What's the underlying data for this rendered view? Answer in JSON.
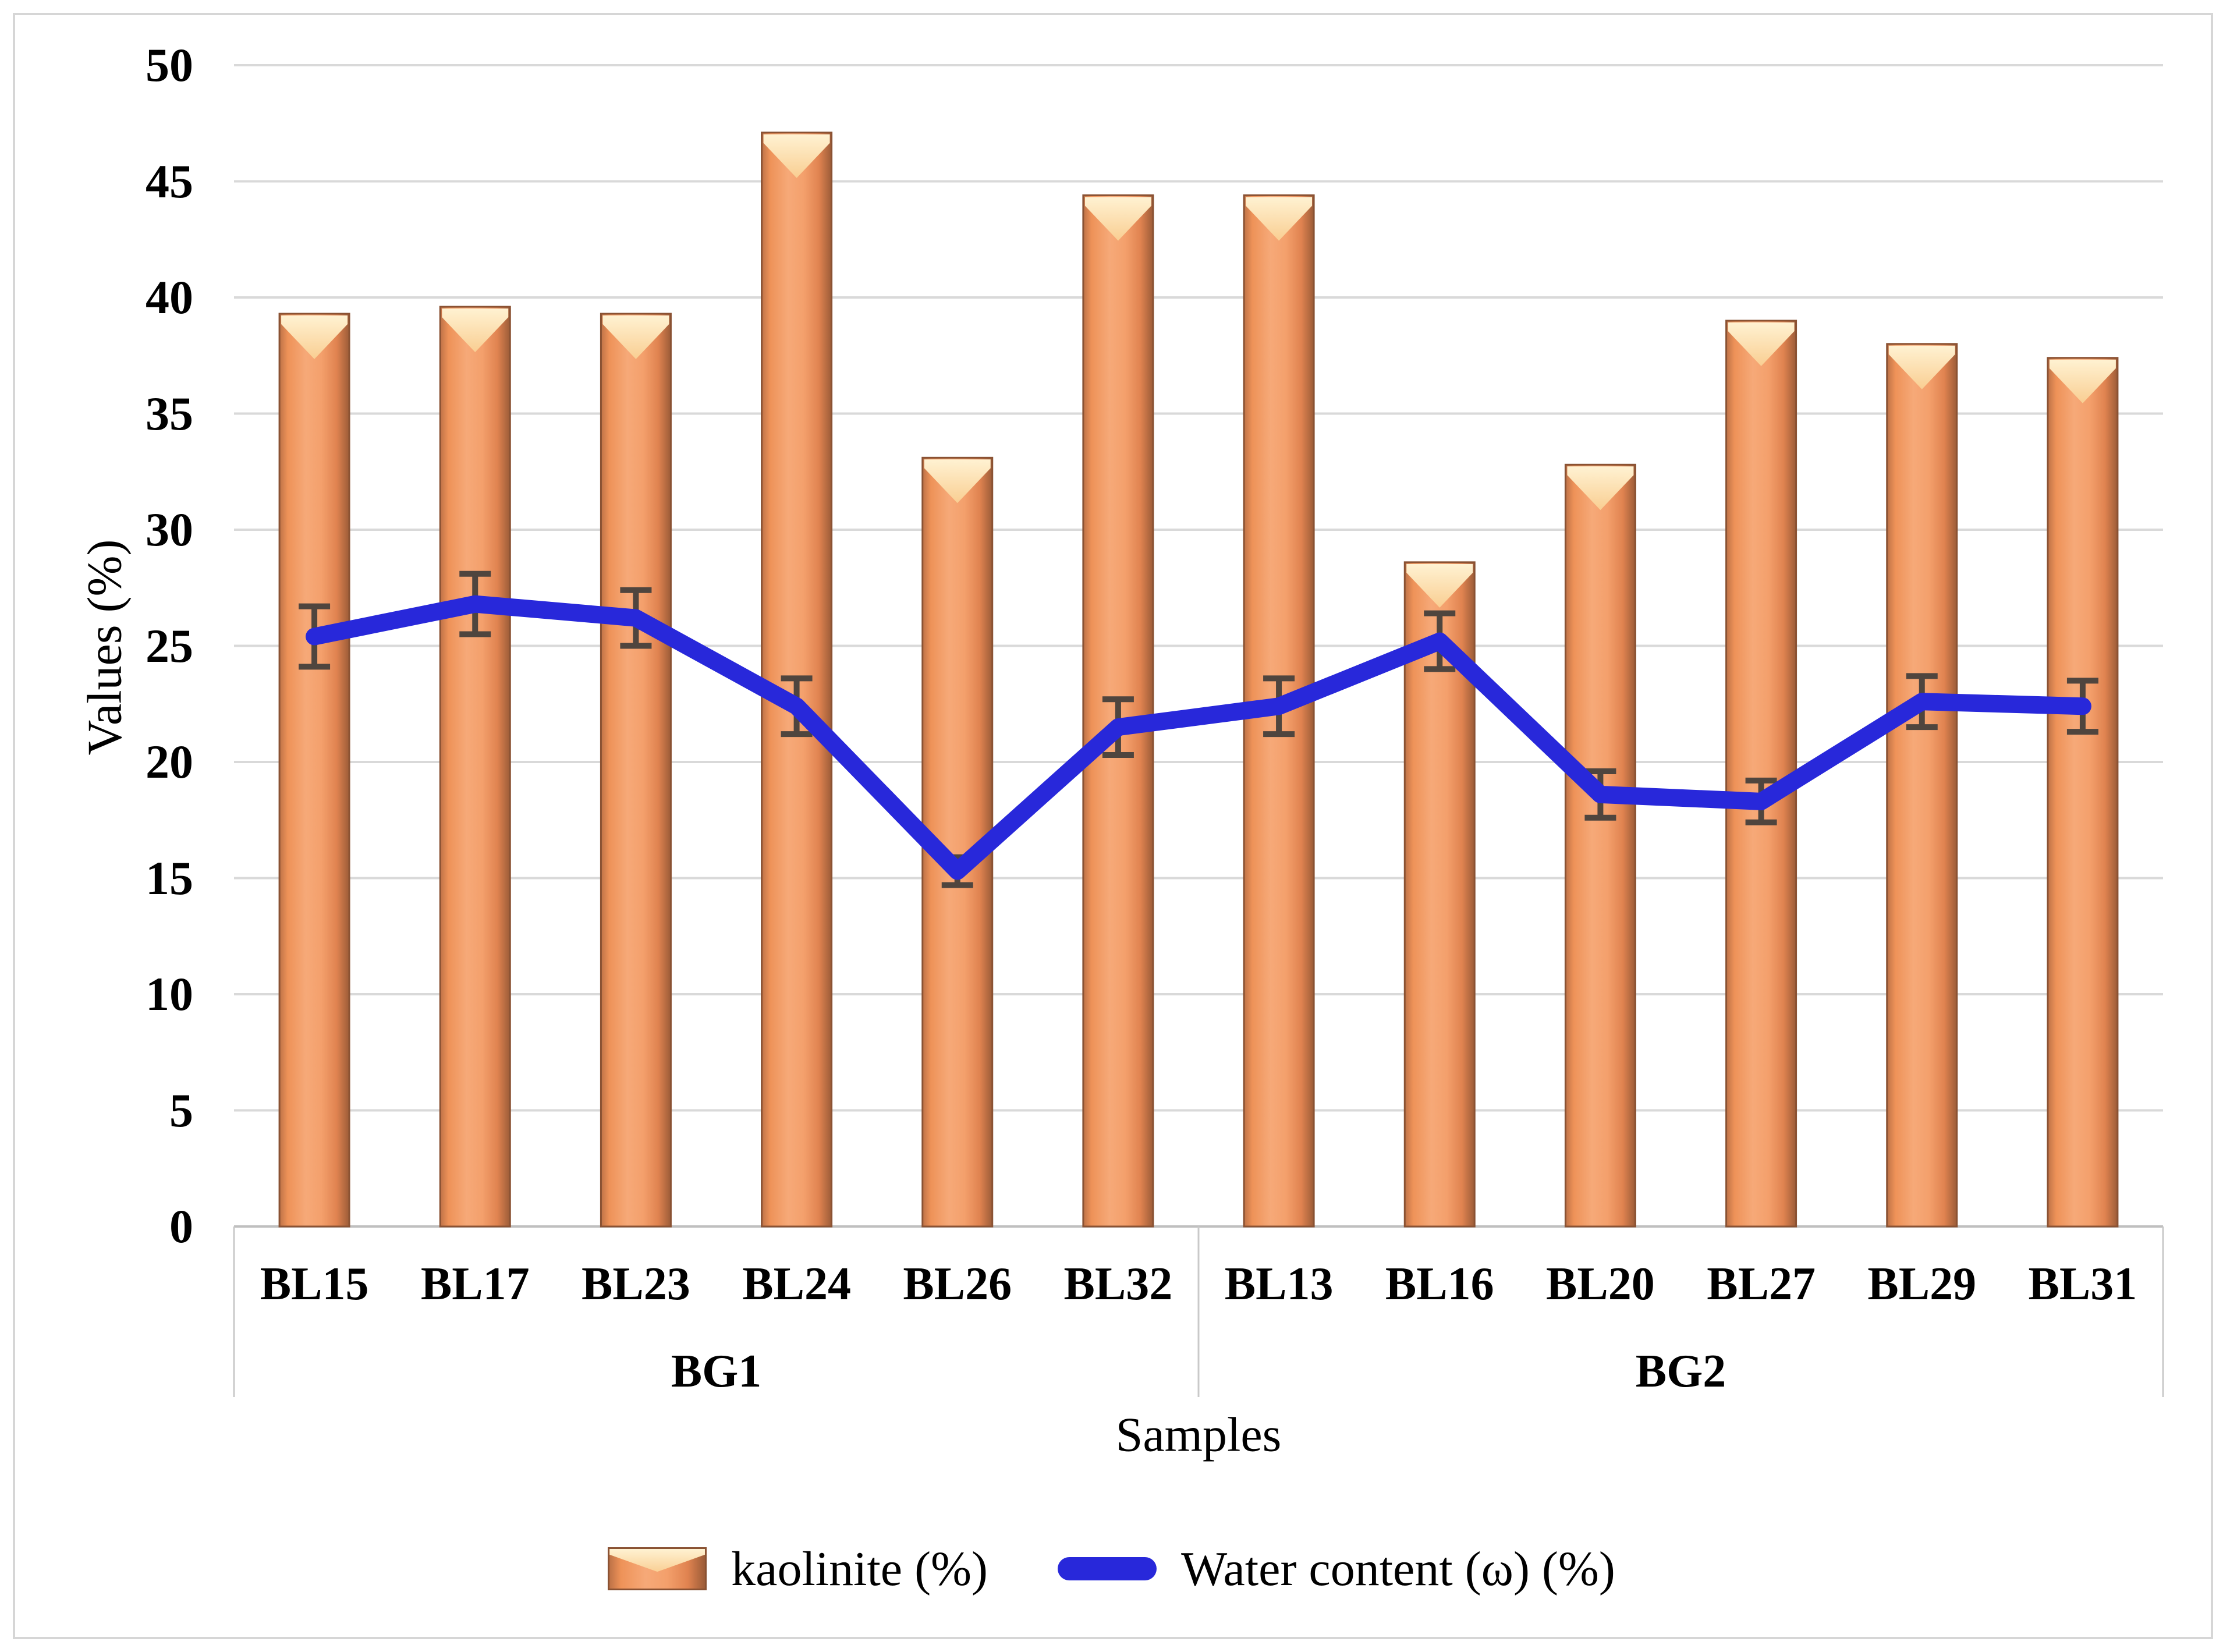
{
  "chart_data": {
    "type": "bar+line",
    "categories": [
      "BL15",
      "BL17",
      "BL23",
      "BL24",
      "BL26",
      "BL32",
      "BL13",
      "BL16",
      "BL20",
      "BL27",
      "BL29",
      "BL31"
    ],
    "groups": [
      {
        "label": "BG1",
        "span": 6
      },
      {
        "label": "BG2",
        "span": 6
      }
    ],
    "series": [
      {
        "name": "kaolinite (%)",
        "type": "bar",
        "values": [
          39.3,
          39.6,
          39.3,
          47.1,
          33.1,
          44.4,
          44.4,
          28.6,
          32.8,
          39.0,
          38.0,
          37.4
        ]
      },
      {
        "name": "Water content (ω) (%)",
        "type": "line",
        "values": [
          25.4,
          26.8,
          26.2,
          22.4,
          15.3,
          21.5,
          22.4,
          25.2,
          18.6,
          18.3,
          22.6,
          22.4
        ],
        "errors": [
          1.3,
          1.3,
          1.2,
          1.2,
          0.6,
          1.2,
          1.2,
          1.2,
          1.0,
          0.9,
          1.1,
          1.1
        ]
      }
    ],
    "title": "",
    "xlabel": "Samples",
    "ylabel": "Values (%)",
    "ylim": [
      0,
      50
    ],
    "ytick_step": 5,
    "grid": true,
    "legend_position": "bottom"
  },
  "legend": {
    "items": [
      {
        "label": "kaolinite (%)",
        "swatch": "bar"
      },
      {
        "label": "Water content (ω) (%)",
        "swatch": "line"
      }
    ]
  },
  "colors": {
    "bar_gradient": [
      {
        "o": 0.0,
        "c": "#be7247"
      },
      {
        "o": 0.12,
        "c": "#ee9258"
      },
      {
        "o": 0.38,
        "c": "#f6a978"
      },
      {
        "o": 0.6,
        "c": "#f4a06c"
      },
      {
        "o": 0.82,
        "c": "#e08350"
      },
      {
        "o": 1.0,
        "c": "#9c5c38"
      }
    ],
    "bar_border": "#8a5233",
    "bar_cap_top": "#fff2d2",
    "bar_cap_bottom": "#f9ce92",
    "line": "#2828da",
    "error_bar": "#4f453e",
    "gridline": "#d9d9d9",
    "axis_line": "#bfbfbf",
    "divider": "#c9c9c9",
    "figure_border": "#d6d6d6",
    "text": "#000000"
  }
}
